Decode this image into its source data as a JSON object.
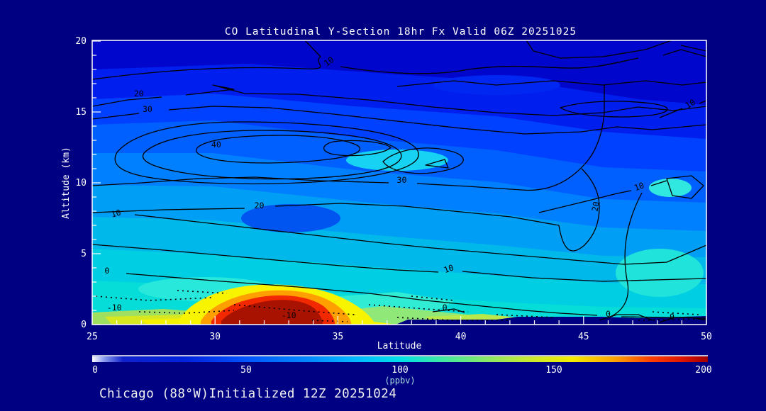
{
  "title": "CO Latitudinal Y-Section 18hr  Fx Valid 06Z 20251025",
  "footer": "Chicago (88°W)Initialized 12Z 20251024",
  "x_axis": {
    "label": "Latitude",
    "ticks": [
      25,
      30,
      35,
      40,
      45,
      50
    ],
    "min": 25,
    "max": 50,
    "minor_step": 1
  },
  "y_axis": {
    "label": "Altitude (km)",
    "ticks": [
      0,
      5,
      10,
      15,
      20
    ],
    "min": 0,
    "max": 20,
    "minor_step": 1
  },
  "colorbar": {
    "unit_label": "(ppbv)",
    "ticks": [
      0,
      50,
      100,
      150,
      200
    ],
    "min": 0,
    "max": 200
  },
  "contour_labels": [
    {
      "t": "10",
      "lat": 34.7,
      "alt": 18.4,
      "rot": -35
    },
    {
      "t": "20",
      "lat": 26.9,
      "alt": 16.1,
      "rot": 0
    },
    {
      "t": "30",
      "lat": 27.25,
      "alt": 15.0,
      "rot": 0
    },
    {
      "t": "40",
      "lat": 30.05,
      "alt": 12.5,
      "rot": 0
    },
    {
      "t": "30",
      "lat": 37.6,
      "alt": 10.0,
      "rot": 0
    },
    {
      "t": "20",
      "lat": 31.8,
      "alt": 8.2,
      "rot": 0
    },
    {
      "t": "10",
      "lat": 26.0,
      "alt": 7.65,
      "rot": -15
    },
    {
      "t": "10",
      "lat": 49.4,
      "alt": 15.4,
      "rot": -30
    },
    {
      "t": "20",
      "lat": 45.6,
      "alt": 8.3,
      "rot": -80
    },
    {
      "t": "10",
      "lat": 47.3,
      "alt": 9.55,
      "rot": -20
    },
    {
      "t": "0",
      "lat": 25.6,
      "alt": 3.6,
      "rot": 0
    },
    {
      "t": "10",
      "lat": 39.55,
      "alt": 3.75,
      "rot": -20
    },
    {
      "t": "0",
      "lat": 39.35,
      "alt": 1.0,
      "rot": 0
    },
    {
      "t": "-10",
      "lat": 25.9,
      "alt": 1.0,
      "rot": 0
    },
    {
      "t": "-10",
      "lat": 33.0,
      "alt": 0.45,
      "rot": 0
    },
    {
      "t": "0",
      "lat": 46.0,
      "alt": 0.55,
      "rot": 0
    },
    {
      "t": "0",
      "lat": 48.6,
      "alt": 0.35,
      "rot": 0
    }
  ],
  "colors": {
    "background": "#000082",
    "text": "#ffffff",
    "unit_text": "#a8dce0",
    "contour_lines": "#000000",
    "hotspot_core": "#a81200"
  },
  "chart_data": {
    "type": "heatmap",
    "subtype": "filled-contour-cross-section",
    "title": "CO Latitudinal Y-Section 18hr  Fx Valid 06Z 20251025",
    "xlabel": "Latitude",
    "ylabel": "Altitude (km)",
    "xlim": [
      25,
      50
    ],
    "ylim": [
      0,
      20
    ],
    "grid": false,
    "colorbar": {
      "label": "(ppbv)",
      "min": 0,
      "max": 200,
      "ticks": [
        0,
        50,
        100,
        150,
        200
      ],
      "scale": "white -> blue -> cyan -> green -> yellow -> orange -> red -> dark red"
    },
    "contour_line_levels_labeled": [
      -10,
      0,
      10,
      20,
      30,
      40
    ],
    "negative_contours_dotted": true,
    "x_latitude": [
      25,
      27.5,
      30,
      32.5,
      35,
      37.5,
      40,
      42.5,
      45,
      47.5,
      50
    ],
    "y_altitude_km": [
      0,
      2,
      4,
      6,
      8,
      10,
      12,
      14,
      16,
      18,
      20
    ],
    "values_ppbv_estimated_rows_by_altitude": [
      [
        135,
        140,
        175,
        200,
        200,
        150,
        110,
        100,
        95,
        90,
        88
      ],
      [
        100,
        110,
        120,
        130,
        125,
        115,
        105,
        100,
        95,
        90,
        85
      ],
      [
        90,
        95,
        100,
        105,
        105,
        100,
        95,
        90,
        85,
        80,
        78
      ],
      [
        85,
        90,
        95,
        95,
        95,
        92,
        88,
        82,
        78,
        72,
        70
      ],
      [
        80,
        85,
        88,
        90,
        88,
        85,
        80,
        75,
        70,
        65,
        60
      ],
      [
        70,
        75,
        80,
        80,
        78,
        75,
        70,
        65,
        60,
        55,
        50
      ],
      [
        60,
        65,
        70,
        68,
        65,
        62,
        58,
        52,
        48,
        45,
        42
      ],
      [
        50,
        55,
        58,
        55,
        52,
        50,
        48,
        45,
        40,
        38,
        35
      ],
      [
        40,
        42,
        45,
        45,
        42,
        40,
        38,
        35,
        32,
        30,
        28
      ],
      [
        30,
        32,
        35,
        35,
        35,
        32,
        30,
        28,
        25,
        22,
        20
      ],
      [
        25,
        25,
        28,
        30,
        30,
        28,
        25,
        22,
        20,
        18,
        15
      ]
    ],
    "annotations": [
      "High-CO plume (>=200 ppbv, dark red core) near surface between latitude 29 and 34, below ~2.5 km",
      "Yellow-green enhanced band along the surface from latitude 25 to ~29",
      "Concentrations decrease with altitude; darkest blue (lowest CO) at 18-20 km",
      "Navy terrain mask along the bottom edge from ~latitude 37 to 50"
    ]
  }
}
